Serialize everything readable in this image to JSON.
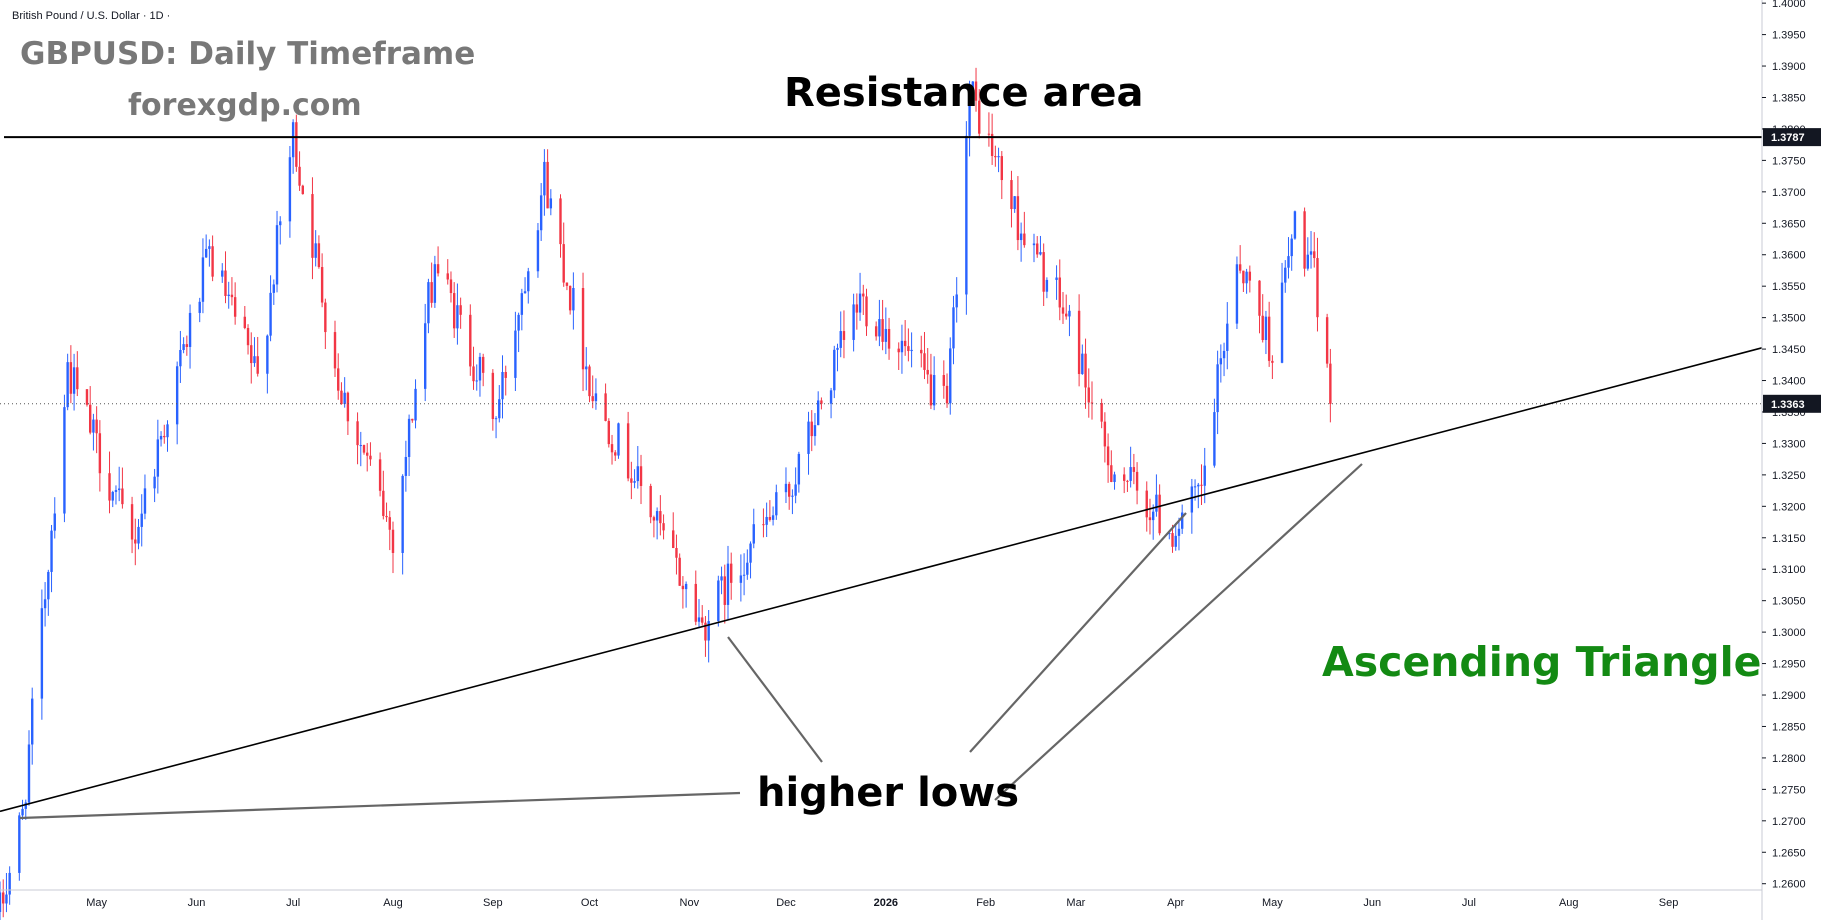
{
  "symbol_label": "British Pound / U.S. Dollar · 1D ·",
  "title": "GBPUSD: Daily Timeframe",
  "subtitle": "forexgdp.com",
  "annotations": {
    "resistance": "Resistance area",
    "higher_lows": "higher lows",
    "pattern": "Ascending Triangle"
  },
  "colors": {
    "up": "#2962ff",
    "down": "#f23645",
    "line": "#000000",
    "arrow": "#666666",
    "pattern_text": "#138a13",
    "tag_bg": "#131722"
  },
  "chart_data": {
    "type": "candlestick",
    "ylim": [
      1.259,
      1.4005
    ],
    "y_ticks": [
      "1.4000",
      "1.3950",
      "1.3900",
      "1.3850",
      "1.3800",
      "1.3750",
      "1.3700",
      "1.3650",
      "1.3600",
      "1.3550",
      "1.3500",
      "1.3450",
      "1.3400",
      "1.3350",
      "1.3300",
      "1.3250",
      "1.3200",
      "1.3150",
      "1.3100",
      "1.3050",
      "1.3000",
      "1.2950",
      "1.2900",
      "1.2850",
      "1.2800",
      "1.2750",
      "1.2700",
      "1.2650",
      "1.2600"
    ],
    "x_labels": [
      {
        "label": "May",
        "date": "2025-05-01"
      },
      {
        "label": "Jun",
        "date": "2025-06-01"
      },
      {
        "label": "Jul",
        "date": "2025-07-01"
      },
      {
        "label": "Aug",
        "date": "2025-08-01"
      },
      {
        "label": "Sep",
        "date": "2025-09-01"
      },
      {
        "label": "Oct",
        "date": "2025-10-01"
      },
      {
        "label": "Nov",
        "date": "2025-11-01"
      },
      {
        "label": "Dec",
        "date": "2025-12-01"
      },
      {
        "label": "2026",
        "date": "2026-01-01",
        "bold": true
      },
      {
        "label": "Feb",
        "date": "2026-02-01"
      },
      {
        "label": "Mar",
        "date": "2026-03-01"
      },
      {
        "label": "Apr",
        "date": "2026-04-01"
      },
      {
        "label": "May",
        "date": "2026-05-01"
      },
      {
        "label": "Jun",
        "date": "2026-06-01"
      },
      {
        "label": "Jul",
        "date": "2026-07-01"
      },
      {
        "label": "Aug",
        "date": "2026-08-01"
      },
      {
        "label": "Sep",
        "date": "2026-09-01"
      }
    ],
    "xlim": [
      "2025-04-01",
      "2026-09-30"
    ],
    "resistance_level": {
      "value": 1.3787,
      "label": "1.3787"
    },
    "last_price": {
      "value": 1.3363,
      "label": "1.3363"
    },
    "trendline": {
      "start": {
        "date": "2025-04-01",
        "price": 1.2715
      },
      "end": {
        "date": "2026-09-30",
        "price": 1.3452
      }
    },
    "swing_points": [
      {
        "date": "2025-04-01",
        "price": 1.2555
      },
      {
        "date": "2025-04-08",
        "price": 1.271
      },
      {
        "date": "2025-04-22",
        "price": 1.342
      },
      {
        "date": "2025-05-12",
        "price": 1.314
      },
      {
        "date": "2025-06-05",
        "price": 1.36
      },
      {
        "date": "2025-06-20",
        "price": 1.34
      },
      {
        "date": "2025-07-01",
        "price": 1.3789
      },
      {
        "date": "2025-07-15",
        "price": 1.34
      },
      {
        "date": "2025-08-01",
        "price": 1.315
      },
      {
        "date": "2025-08-14",
        "price": 1.359
      },
      {
        "date": "2025-09-02",
        "price": 1.334
      },
      {
        "date": "2025-09-17",
        "price": 1.3725
      },
      {
        "date": "2025-10-02",
        "price": 1.338
      },
      {
        "date": "2025-10-14",
        "price": 1.326
      },
      {
        "date": "2025-11-05",
        "price": 1.301
      },
      {
        "date": "2025-11-20",
        "price": 1.314
      },
      {
        "date": "2025-12-01",
        "price": 1.321
      },
      {
        "date": "2025-12-24",
        "price": 1.353
      },
      {
        "date": "2026-01-05",
        "price": 1.346
      },
      {
        "date": "2026-01-20",
        "price": 1.335
      },
      {
        "date": "2026-01-27",
        "price": 1.386
      },
      {
        "date": "2026-02-12",
        "price": 1.364
      },
      {
        "date": "2026-02-28",
        "price": 1.348
      },
      {
        "date": "2026-03-10",
        "price": 1.328
      },
      {
        "date": "2026-03-31",
        "price": 1.316
      },
      {
        "date": "2026-04-09",
        "price": 1.322
      },
      {
        "date": "2026-04-20",
        "price": 1.36
      },
      {
        "date": "2026-05-01",
        "price": 1.345
      },
      {
        "date": "2026-05-08",
        "price": 1.365
      },
      {
        "date": "2026-05-14",
        "price": 1.356
      },
      {
        "date": "2026-05-19",
        "price": 1.3363
      }
    ],
    "last_date": "2026-05-19"
  }
}
